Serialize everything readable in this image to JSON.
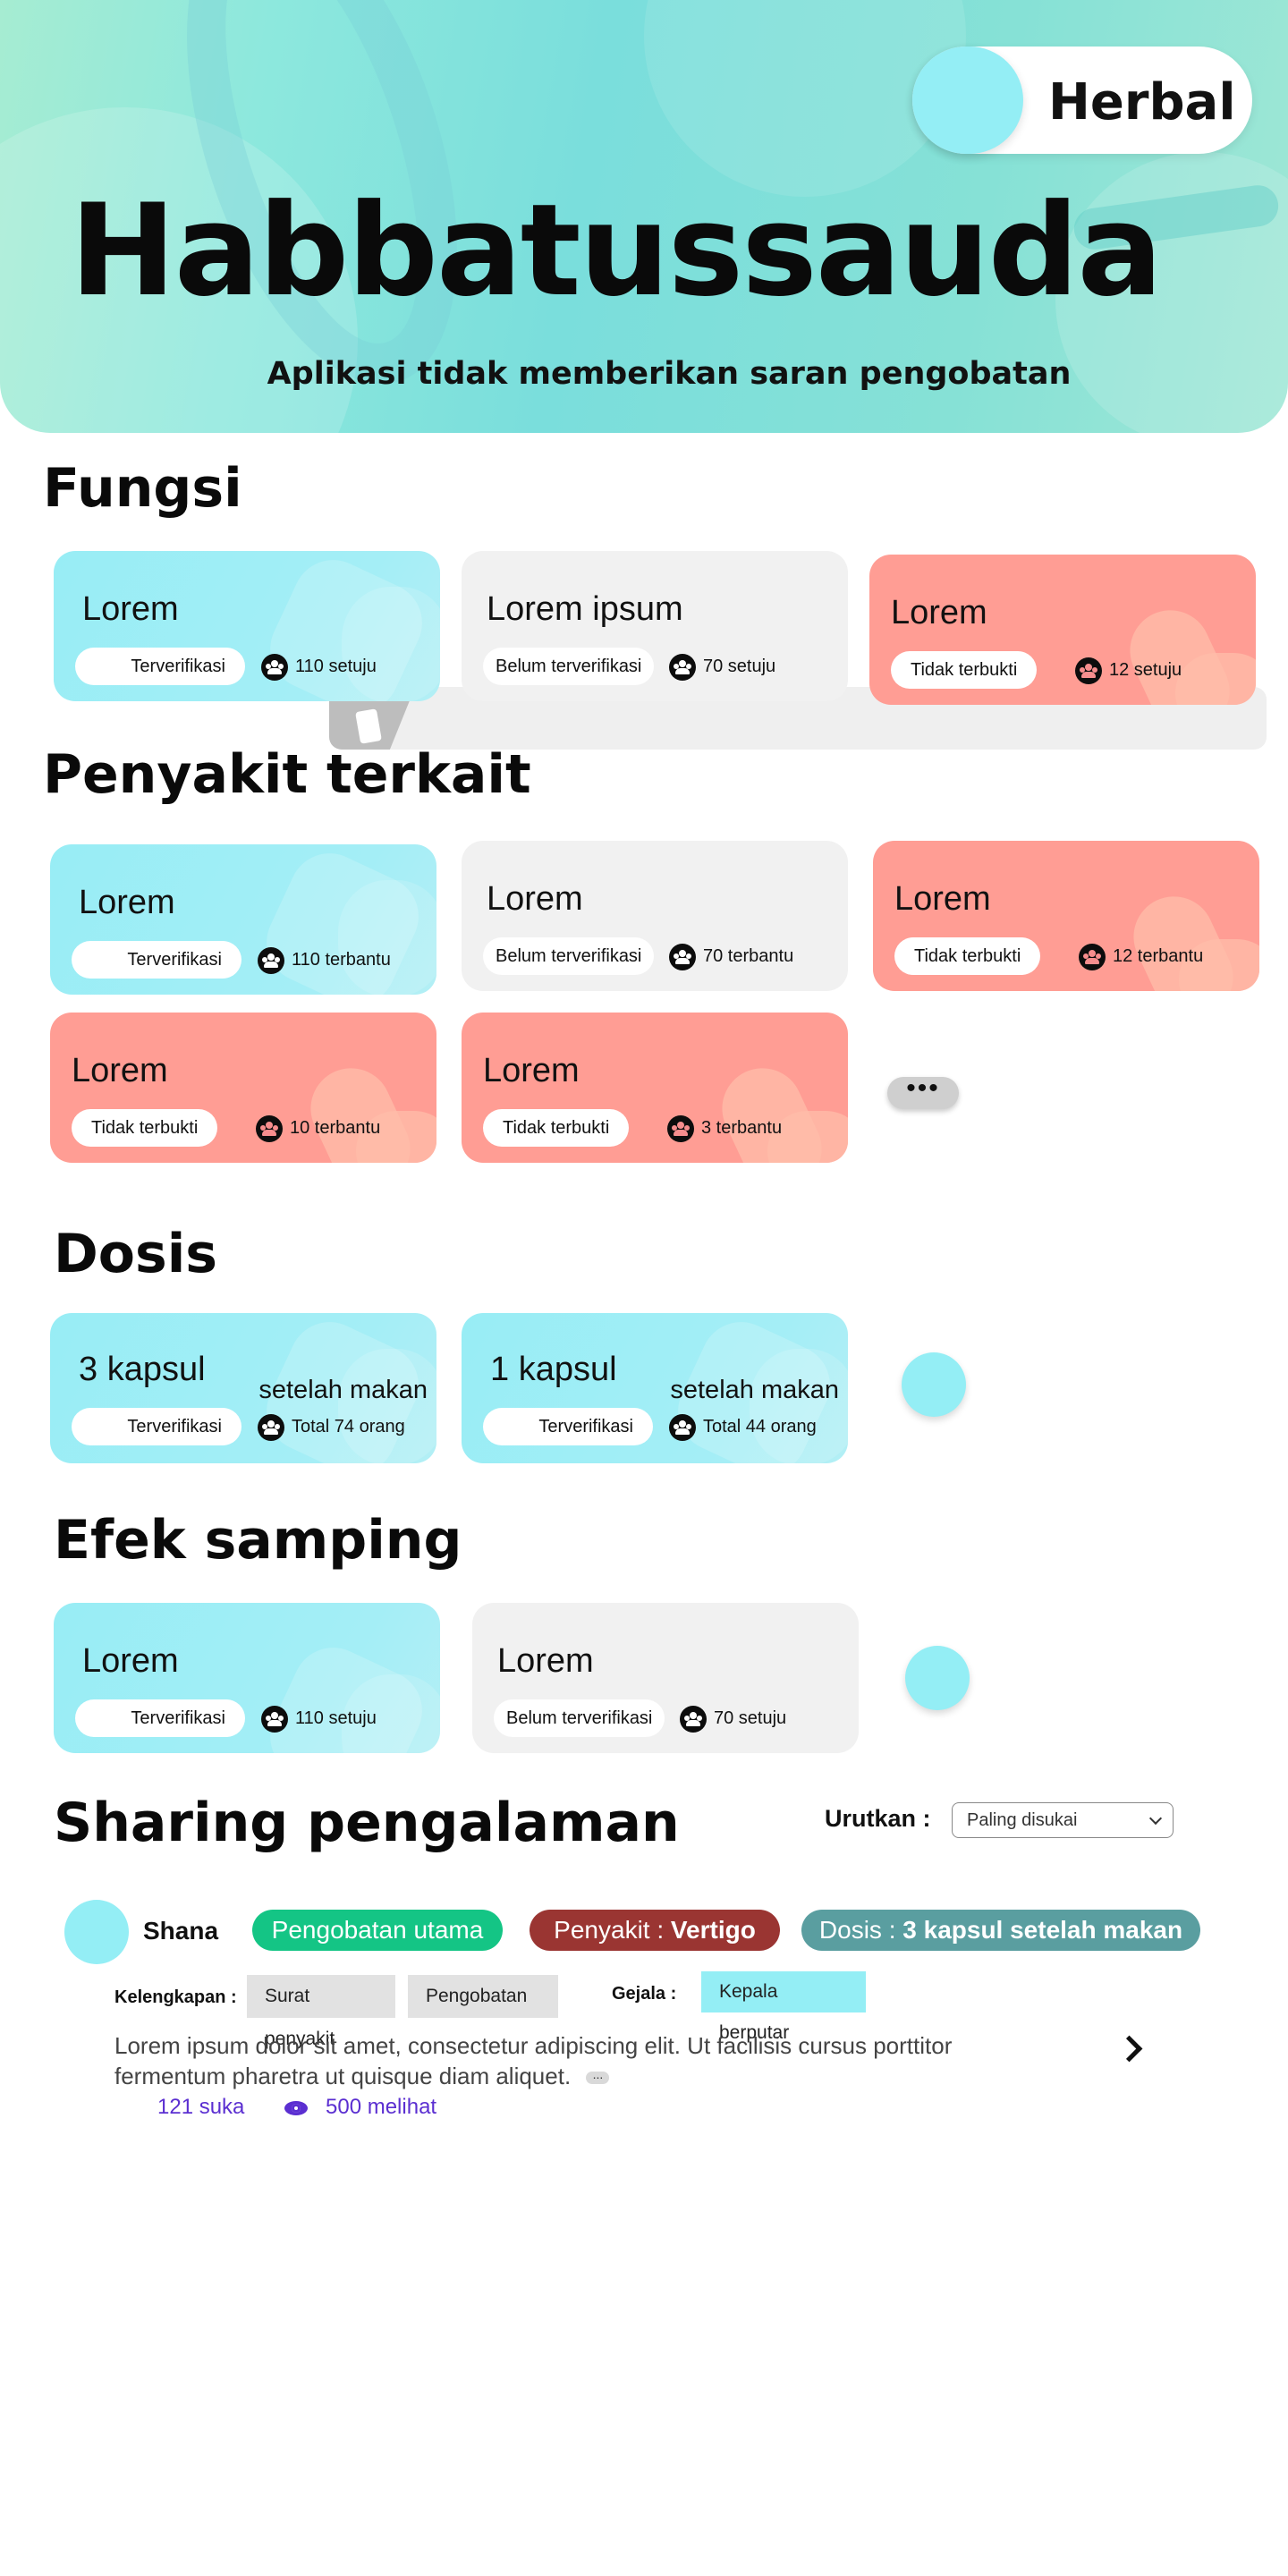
{
  "hero": {
    "category": "Herbal",
    "title": "Habbatussauda",
    "disclaimer": "Aplikasi tidak memberikan saran pengobatan"
  },
  "fungsi": {
    "heading": "Fungsi",
    "cards": [
      {
        "title": "Lorem",
        "badge": "Terverifikasi",
        "count": "110 setuju",
        "variant": "teal"
      },
      {
        "title": "Lorem ipsum",
        "badge": "Belum terverifikasi",
        "count": "70 setuju",
        "variant": "grey"
      },
      {
        "title": "Lorem",
        "badge": "Tidak terbukti",
        "count": "12 setuju",
        "variant": "red"
      }
    ]
  },
  "penyakit": {
    "heading": "Penyakit terkait",
    "cards": [
      {
        "title": "Lorem",
        "badge": "Terverifikasi",
        "count": "110 terbantu",
        "variant": "teal"
      },
      {
        "title": "Lorem",
        "badge": "Belum terverifikasi",
        "count": "70 terbantu",
        "variant": "grey"
      },
      {
        "title": "Lorem",
        "badge": "Tidak terbukti",
        "count": "12 terbantu",
        "variant": "red"
      },
      {
        "title": "Lorem",
        "badge": "Tidak terbukti",
        "count": "10 terbantu",
        "variant": "red"
      },
      {
        "title": "Lorem",
        "badge": "Tidak terbukti",
        "count": "3 terbantu",
        "variant": "red"
      }
    ],
    "more_label": "•••"
  },
  "dosis": {
    "heading": "Dosis",
    "cards": [
      {
        "title": "3 kapsul",
        "suffix": "setelah makan",
        "badge": "Terverifikasi",
        "count": "Total 74 orang"
      },
      {
        "title": "1 kapsul",
        "suffix": "setelah makan",
        "badge": "Terverifikasi",
        "count": "Total 44 orang"
      }
    ]
  },
  "efek": {
    "heading": "Efek samping",
    "cards": [
      {
        "title": "Lorem",
        "badge": "Terverifikasi",
        "count": "110 setuju",
        "variant": "teal"
      },
      {
        "title": "Lorem",
        "badge": "Belum terverifikasi",
        "count": "70 setuju",
        "variant": "grey"
      }
    ]
  },
  "sharing": {
    "heading": "Sharing pengalaman",
    "sort_label": "Urutkan :",
    "sort_value": "Paling disukai",
    "post": {
      "user": "Shana",
      "tag_primary": "Pengobatan utama",
      "tag_disease_prefix": "Penyakit : ",
      "tag_disease_value": "Vertigo",
      "tag_dose_prefix": "Dosis : ",
      "tag_dose_value": "3 kapsul setelah makan",
      "kelengkapan_label": "Kelengkapan :",
      "kelengkapan": [
        "Surat penyakit",
        "Pengobatan"
      ],
      "gejala_label": "Gejala :",
      "gejala": [
        "Kepala berputar"
      ],
      "text": "Lorem ipsum dolor sit amet, consectetur adipiscing elit. Ut facilisis cursus porttitor fermentum pharetra ut quisque diam aliquet.",
      "ellipsis": "...",
      "likes": "121 suka",
      "views": "500 melihat"
    }
  },
  "colors": {
    "teal": "#94eef5",
    "grey": "#f1f1f1",
    "red": "#ff9d94",
    "green": "#14c585",
    "maroon": "#9a3532",
    "slate": "#5a9ea0",
    "link": "#5b2fd1"
  }
}
